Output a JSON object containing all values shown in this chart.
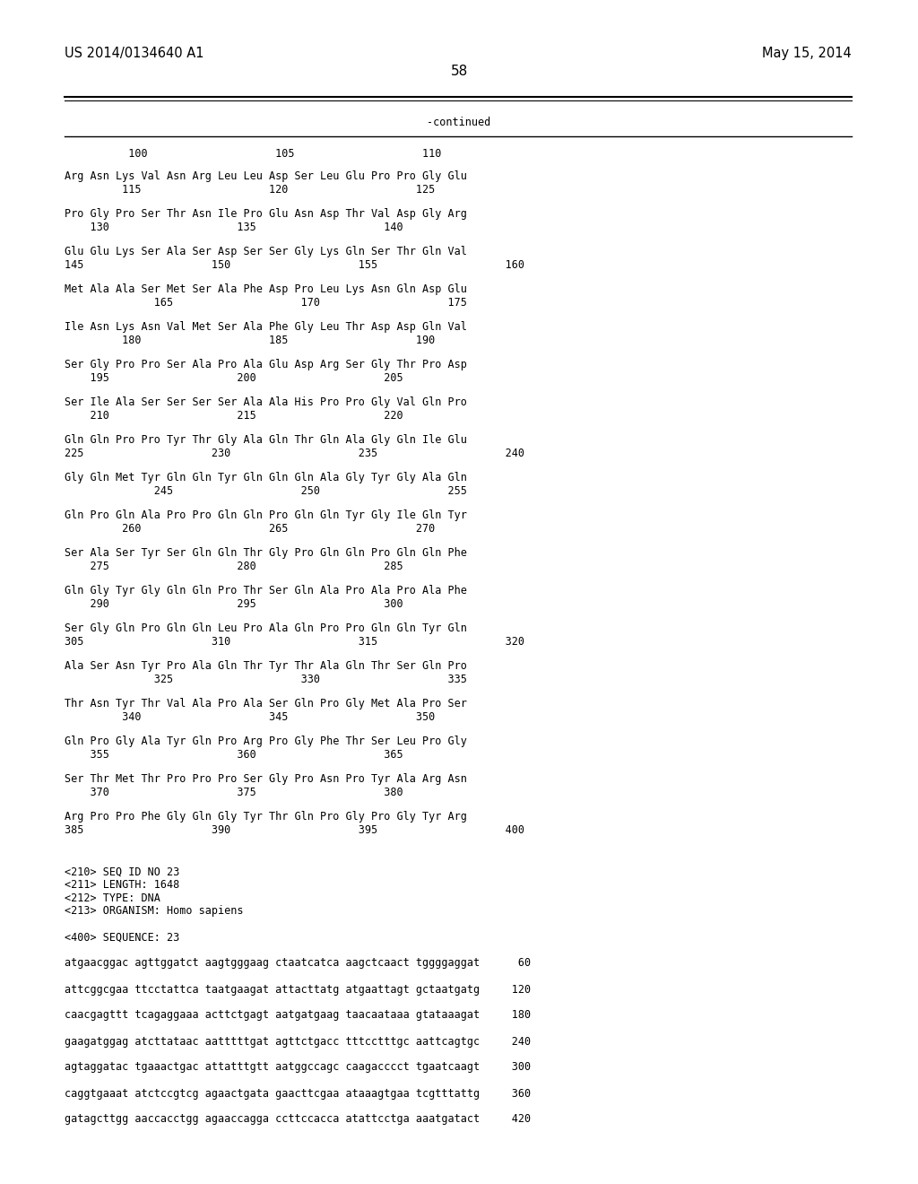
{
  "header_left": "US 2014/0134640 A1",
  "header_right": "May 15, 2014",
  "page_number": "58",
  "continued_label": "-continued",
  "number_line": "          100                    105                    110",
  "sequence_blocks": [
    {
      "aa_line": "Arg Asn Lys Val Asn Arg Leu Leu Asp Ser Leu Glu Pro Pro Gly Glu",
      "num_line": "         115                    120                    125"
    },
    {
      "aa_line": "Pro Gly Pro Ser Thr Asn Ile Pro Glu Asn Asp Thr Val Asp Gly Arg",
      "num_line": "    130                    135                    140"
    },
    {
      "aa_line": "Glu Glu Lys Ser Ala Ser Asp Ser Ser Gly Lys Gln Ser Thr Gln Val",
      "num_line": "145                    150                    155                    160"
    },
    {
      "aa_line": "Met Ala Ala Ser Met Ser Ala Phe Asp Pro Leu Lys Asn Gln Asp Glu",
      "num_line": "              165                    170                    175"
    },
    {
      "aa_line": "Ile Asn Lys Asn Val Met Ser Ala Phe Gly Leu Thr Asp Asp Gln Val",
      "num_line": "         180                    185                    190"
    },
    {
      "aa_line": "Ser Gly Pro Pro Ser Ala Pro Ala Glu Asp Arg Ser Gly Thr Pro Asp",
      "num_line": "    195                    200                    205"
    },
    {
      "aa_line": "Ser Ile Ala Ser Ser Ser Ser Ala Ala His Pro Pro Gly Val Gln Pro",
      "num_line": "    210                    215                    220"
    },
    {
      "aa_line": "Gln Gln Pro Pro Tyr Thr Gly Ala Gln Thr Gln Ala Gly Gln Ile Glu",
      "num_line": "225                    230                    235                    240"
    },
    {
      "aa_line": "Gly Gln Met Tyr Gln Gln Tyr Gln Gln Gln Ala Gly Tyr Gly Ala Gln",
      "num_line": "              245                    250                    255"
    },
    {
      "aa_line": "Gln Pro Gln Ala Pro Pro Gln Gln Pro Gln Gln Tyr Gly Ile Gln Tyr",
      "num_line": "         260                    265                    270"
    },
    {
      "aa_line": "Ser Ala Ser Tyr Ser Gln Gln Thr Gly Pro Gln Gln Pro Gln Gln Phe",
      "num_line": "    275                    280                    285"
    },
    {
      "aa_line": "Gln Gly Tyr Gly Gln Gln Pro Thr Ser Gln Ala Pro Ala Pro Ala Phe",
      "num_line": "    290                    295                    300"
    },
    {
      "aa_line": "Ser Gly Gln Pro Gln Gln Leu Pro Ala Gln Pro Pro Gln Gln Tyr Gln",
      "num_line": "305                    310                    315                    320"
    },
    {
      "aa_line": "Ala Ser Asn Tyr Pro Ala Gln Thr Tyr Thr Ala Gln Thr Ser Gln Pro",
      "num_line": "              325                    330                    335"
    },
    {
      "aa_line": "Thr Asn Tyr Thr Val Ala Pro Ala Ser Gln Pro Gly Met Ala Pro Ser",
      "num_line": "         340                    345                    350"
    },
    {
      "aa_line": "Gln Pro Gly Ala Tyr Gln Pro Arg Pro Gly Phe Thr Ser Leu Pro Gly",
      "num_line": "    355                    360                    365"
    },
    {
      "aa_line": "Ser Thr Met Thr Pro Pro Pro Ser Gly Pro Asn Pro Tyr Ala Arg Asn",
      "num_line": "    370                    375                    380"
    },
    {
      "aa_line": "Arg Pro Pro Phe Gly Gln Gly Tyr Thr Gln Pro Gly Pro Gly Tyr Arg",
      "num_line": "385                    390                    395                    400"
    }
  ],
  "meta_lines": [
    "<210> SEQ ID NO 23",
    "<211> LENGTH: 1648",
    "<212> TYPE: DNA",
    "<213> ORGANISM: Homo sapiens",
    "",
    "<400> SEQUENCE: 23",
    "",
    "atgaacggac agttggatct aagtgggaag ctaatcatca aagctcaact tggggaggat      60",
    "",
    "attcggcgaa ttcctattca taatgaagat attacttatg atgaattagt gctaatgatg     120",
    "",
    "caacgagttt tcagaggaaa acttctgagt aatgatgaag taacaataaa gtataaagat     180",
    "",
    "gaagatggag atcttataac aatttttgat agttctgacc tttcctttgc aattcagtgc     240",
    "",
    "agtaggatac tgaaactgac attatttgtt aatggccagc caagacccct tgaatcaagt     300",
    "",
    "caggtgaaat atctccgtcg agaactgata gaacttcgaa ataaagtgaa tcgtttattg     360",
    "",
    "gatagcttgg aaccacctgg agaaccagga ccttccacca atattcctga aaatgatact     420"
  ],
  "bg_color": "#ffffff",
  "text_color": "#000000",
  "font_size_header": 10.5,
  "font_size_body": 8.8,
  "font_size_page": 11,
  "font_size_mono": 8.5
}
